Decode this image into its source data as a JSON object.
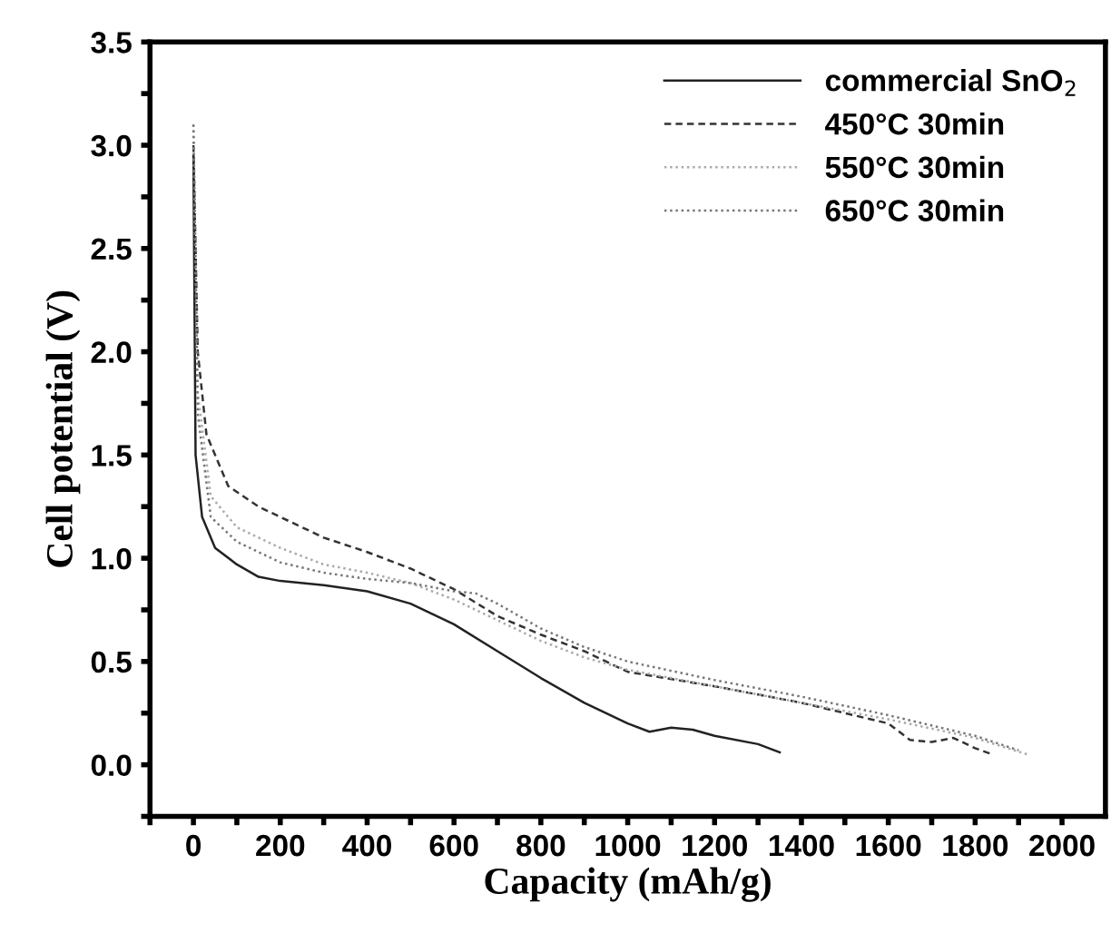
{
  "chart_data": {
    "type": "line",
    "xlabel": "Capacity (mAh/g)",
    "ylabel": "Cell potential (V)",
    "xlim": [
      -100,
      2100
    ],
    "ylim": [
      -0.25,
      3.5
    ],
    "xticks": [
      {
        "value": -100,
        "label": null
      },
      0,
      {
        "value": 100,
        "label": null
      },
      200,
      {
        "value": 300,
        "label": null
      },
      400,
      {
        "value": 500,
        "label": null
      },
      600,
      {
        "value": 700,
        "label": null
      },
      800,
      {
        "value": 900,
        "label": null
      },
      1000,
      {
        "value": 1100,
        "label": null
      },
      1200,
      {
        "value": 1300,
        "label": null
      },
      1400,
      {
        "value": 1500,
        "label": null
      },
      1600,
      {
        "value": 1700,
        "label": null
      },
      1800,
      {
        "value": 1900,
        "label": null
      },
      2000
    ],
    "yticks": [
      {
        "value": -0.25,
        "label": null
      },
      {
        "value": 0,
        "label": "0.0"
      },
      {
        "value": 0.25,
        "label": null
      },
      0.5,
      {
        "value": 0.75,
        "label": null
      },
      {
        "value": 1,
        "label": "1.0"
      },
      {
        "value": 1.25,
        "label": null
      },
      1.5,
      {
        "value": 1.75,
        "label": null
      },
      {
        "value": 2,
        "label": "2.0"
      },
      {
        "value": 2.25,
        "label": null
      },
      2.5,
      {
        "value": 2.75,
        "label": null
      },
      {
        "value": 3,
        "label": "3.0"
      },
      {
        "value": 3.25,
        "label": null
      },
      3.5
    ],
    "grid": false,
    "legend": "top right",
    "marker": "none",
    "series": [
      {
        "name": "commercial SnO$_{2}$",
        "color": "#222222",
        "line_style": "solid",
        "x": [
          0,
          5,
          20,
          50,
          100,
          150,
          200,
          300,
          400,
          500,
          600,
          700,
          800,
          900,
          1000,
          1050,
          1100,
          1150,
          1200,
          1300,
          1350
        ],
        "values": [
          2.95,
          1.5,
          1.2,
          1.05,
          0.97,
          0.91,
          0.89,
          0.87,
          0.84,
          0.78,
          0.68,
          0.55,
          0.42,
          0.3,
          0.2,
          0.16,
          0.18,
          0.17,
          0.14,
          0.1,
          0.06
        ]
      },
      {
        "name": "450°C 30min",
        "color": "#333333",
        "line_style": "dashed",
        "x": [
          0,
          10,
          30,
          80,
          150,
          200,
          300,
          400,
          500,
          600,
          700,
          800,
          900,
          1000,
          1200,
          1400,
          1600,
          1650,
          1700,
          1750,
          1800,
          1840
        ],
        "values": [
          3.0,
          2.0,
          1.6,
          1.35,
          1.25,
          1.2,
          1.1,
          1.03,
          0.95,
          0.85,
          0.72,
          0.63,
          0.55,
          0.45,
          0.38,
          0.3,
          0.2,
          0.12,
          0.11,
          0.13,
          0.08,
          0.05
        ]
      },
      {
        "name": "550°C 30min",
        "color": "#aaaaaa",
        "line_style": "dotted",
        "x": [
          0,
          10,
          40,
          100,
          200,
          300,
          400,
          500,
          600,
          700,
          800,
          900,
          1000,
          1200,
          1400,
          1600,
          1800,
          1920
        ],
        "values": [
          3.1,
          1.8,
          1.3,
          1.15,
          1.05,
          0.97,
          0.93,
          0.88,
          0.8,
          0.7,
          0.6,
          0.52,
          0.46,
          0.38,
          0.3,
          0.22,
          0.13,
          0.05
        ]
      },
      {
        "name": "650°C 30min",
        "color": "#777777",
        "line_style": "dotted",
        "x": [
          0,
          10,
          40,
          100,
          200,
          300,
          400,
          500,
          600,
          650,
          700,
          800,
          900,
          1000,
          1200,
          1400,
          1600,
          1800,
          1900
        ],
        "values": [
          3.1,
          1.7,
          1.2,
          1.08,
          0.98,
          0.93,
          0.9,
          0.88,
          0.84,
          0.83,
          0.78,
          0.66,
          0.57,
          0.5,
          0.41,
          0.33,
          0.24,
          0.14,
          0.07
        ]
      }
    ]
  }
}
